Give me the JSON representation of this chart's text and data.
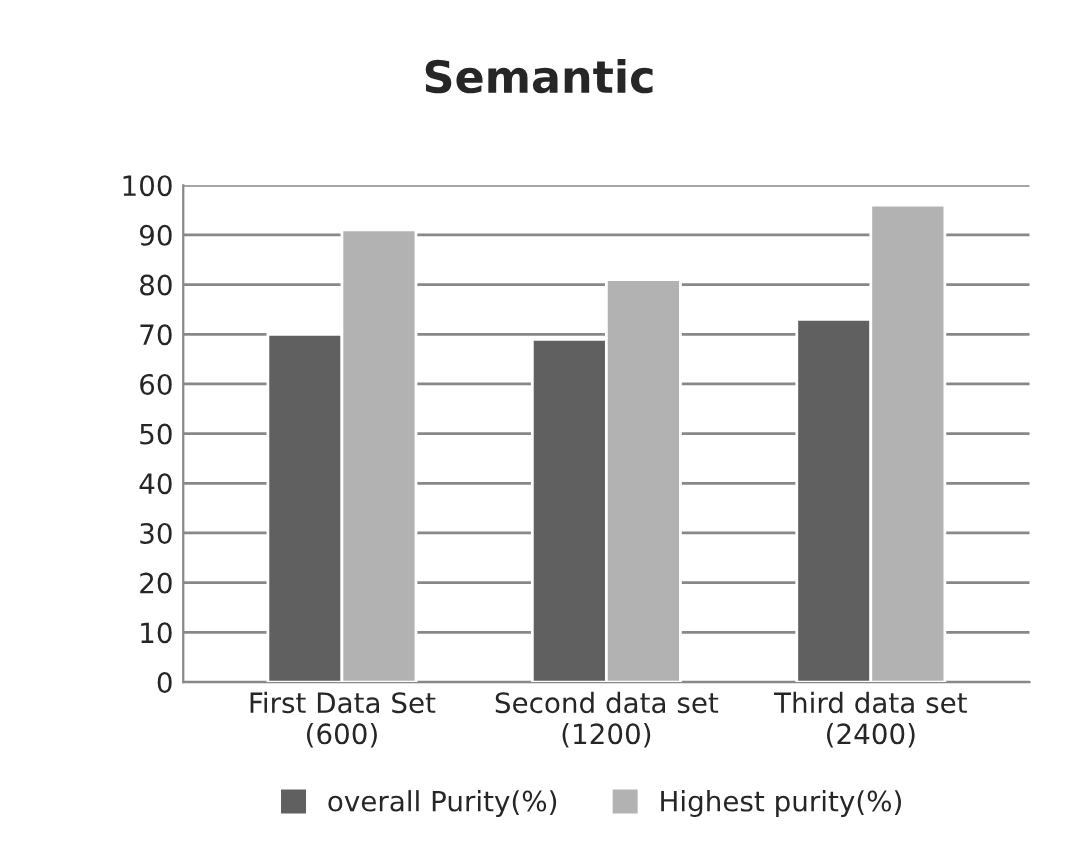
{
  "chart_data": {
    "type": "bar",
    "title": "Semantic",
    "categories": [
      "First Data Set\n(600)",
      "Second data set\n(1200)",
      "Third data set\n(2400)"
    ],
    "series": [
      {
        "name": "overall Purity(%)",
        "color": "#606060",
        "values": [
          70,
          69,
          73
        ]
      },
      {
        "name": "Highest purity(%)",
        "color": "#b2b2b2",
        "values": [
          91,
          81,
          96
        ]
      }
    ],
    "ylim": [
      0,
      100
    ],
    "yticks": [
      0,
      10,
      20,
      30,
      40,
      50,
      60,
      70,
      80,
      90,
      100
    ],
    "grid": "y",
    "legend": "bottom"
  }
}
